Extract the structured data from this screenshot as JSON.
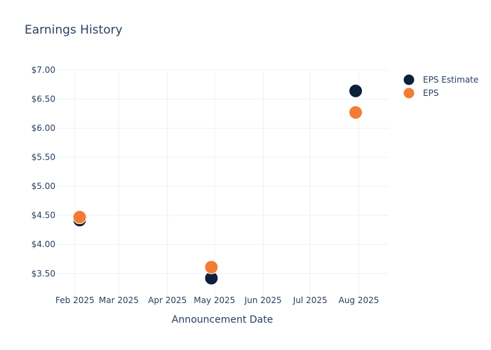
{
  "chart_data": {
    "type": "scatter",
    "title": "Earnings History",
    "xlabel": "Announcement Date",
    "ylabel": "",
    "x_ticks": [
      "Feb 2025",
      "Mar 2025",
      "Apr 2025",
      "May 2025",
      "Jun 2025",
      "Jul 2025",
      "Aug 2025"
    ],
    "x_tick_dates": [
      "2025-02-01",
      "2025-03-01",
      "2025-04-01",
      "2025-05-01",
      "2025-06-01",
      "2025-07-01",
      "2025-08-01"
    ],
    "xlim": [
      "2025-01-20",
      "2025-08-20"
    ],
    "y_ticks": [
      "$3.50",
      "$4.00",
      "$4.50",
      "$5.00",
      "$5.50",
      "$6.00",
      "$6.50",
      "$7.00"
    ],
    "y_tick_values": [
      3.5,
      4.0,
      4.5,
      5.0,
      5.5,
      6.0,
      6.5,
      7.0
    ],
    "ylim": [
      3.1,
      7.0
    ],
    "grid": true,
    "legend_position": "top-right",
    "series": [
      {
        "name": "EPS Estimate",
        "color": "#0c1f3d",
        "points": [
          {
            "x": "2025-02-04",
            "y": 4.42
          },
          {
            "x": "2025-04-29",
            "y": 3.42
          },
          {
            "x": "2025-07-30",
            "y": 6.64
          }
        ]
      },
      {
        "name": "EPS",
        "color": "#f47b35",
        "points": [
          {
            "x": "2025-02-04",
            "y": 4.47
          },
          {
            "x": "2025-04-29",
            "y": 3.61
          },
          {
            "x": "2025-07-30",
            "y": 6.27
          }
        ]
      }
    ]
  }
}
